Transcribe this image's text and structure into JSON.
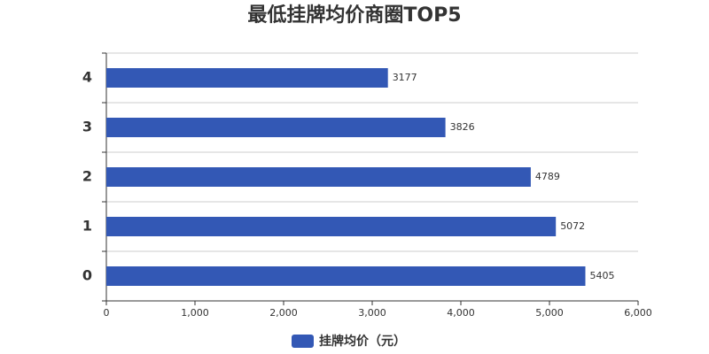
{
  "chart_data": {
    "type": "bar",
    "orientation": "horizontal",
    "title": "最低挂牌均价商圈TOP5",
    "categories": [
      "0",
      "1",
      "2",
      "3",
      "4"
    ],
    "series": [
      {
        "name": "挂牌均价（元）",
        "color": "#3358b5",
        "values": [
          5405,
          5072,
          4789,
          3826,
          3177
        ]
      }
    ],
    "xlim": [
      0,
      6000
    ],
    "xticks": [
      0,
      {
        "value": 1000,
        "label": "1,000"
      },
      {
        "value": 2000,
        "label": "2,000"
      },
      {
        "value": 3000,
        "label": "3,000"
      },
      {
        "value": 4000,
        "label": "4,000"
      },
      {
        "value": 5000,
        "label": "5,000"
      },
      {
        "value": 6000,
        "label": "6,000"
      }
    ],
    "grid": true,
    "legend": "bottom"
  }
}
